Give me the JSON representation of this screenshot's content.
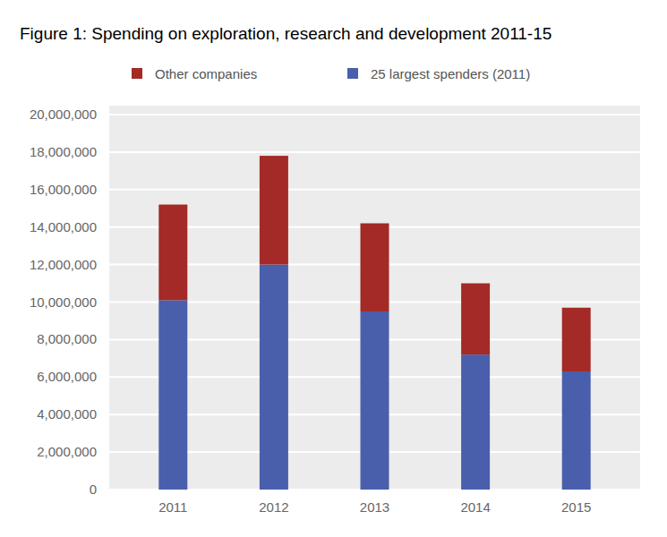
{
  "chart_data": {
    "type": "bar",
    "title": "Figure 1: Spending on exploration, research and development 2011-15",
    "categories": [
      "2011",
      "2012",
      "2013",
      "2014",
      "2015"
    ],
    "series": [
      {
        "name": "25 largest spenders (2011)",
        "color": "#4a5fab",
        "values": [
          10100000,
          12000000,
          9500000,
          7200000,
          6300000
        ]
      },
      {
        "name": "Other companies",
        "color": "#a32a26",
        "values": [
          5100000,
          5800000,
          4700000,
          3800000,
          3400000
        ]
      }
    ],
    "ylim": [
      0,
      20000000
    ],
    "yticks": [
      0,
      {
        "value": 2000000,
        "label": "2,000,000"
      },
      {
        "value": 4000000,
        "label": "4,000,000"
      },
      {
        "value": 6000000,
        "label": "6,000,000"
      },
      {
        "value": 8000000,
        "label": "8,000,000"
      },
      {
        "value": 10000000,
        "label": "10,000,000"
      },
      {
        "value": 12000000,
        "label": "12,000,000"
      },
      {
        "value": 14000000,
        "label": "14,000,000"
      },
      {
        "value": 16000000,
        "label": "16,000,000"
      },
      {
        "value": 18000000,
        "label": "18,000,000"
      },
      {
        "value": 20000000,
        "label": "20,000,000"
      }
    ],
    "stacked": true,
    "grid": true,
    "legend": "top-left"
  }
}
